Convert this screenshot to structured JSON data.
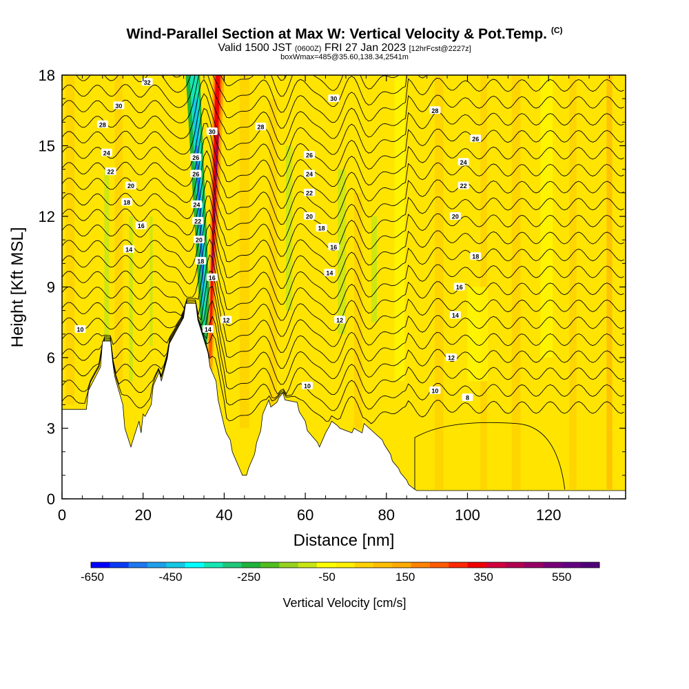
{
  "title": {
    "main": "Wind-Parallel Section at Max W: Vertical Velocity & Pot.Temp.",
    "copyright": "(C)",
    "valid_prefix": "Valid 1500 JST",
    "valid_zulu": "(0600Z)",
    "valid_date": "FRI 27 Jan 2023",
    "forecast_tag": "[12hrFcst@2227z]",
    "box_info": "boxWmax=485@35.60,138.34,2541m"
  },
  "colorbar": {
    "title": "Vertical Velocity [cm/s]",
    "tick_labels": [
      "-650",
      "-450",
      "-250",
      "-50",
      "150",
      "350",
      "550"
    ],
    "colors": [
      "#0000ff",
      "#0a3cf5",
      "#1e78f0",
      "#1ea0eb",
      "#14c8e6",
      "#00ffff",
      "#14e6b4",
      "#1ec878",
      "#1eb43c",
      "#50be1e",
      "#96d21e",
      "#c8e614",
      "#ffff00",
      "#fff000",
      "#ffd200",
      "#ffbe00",
      "#ffaa00",
      "#ff8200",
      "#ff5a00",
      "#ff2800",
      "#f00000",
      "#d2003c",
      "#b40050",
      "#960064",
      "#780078",
      "#640082",
      "#500078"
    ]
  },
  "chart_data": {
    "type": "heatmap",
    "title": "Wind-Parallel Section at Max W: Vertical Velocity & Pot.Temp.",
    "xlabel": "Distance [nm]",
    "ylabel": "Height [Kft MSL]",
    "xlim": [
      0,
      139
    ],
    "ylim": [
      0,
      18
    ],
    "x_ticks": [
      0,
      20,
      40,
      60,
      80,
      100,
      120
    ],
    "y_ticks": [
      0,
      3,
      6,
      9,
      12,
      15,
      18
    ],
    "shaded_field": "Vertical Velocity [cm/s]",
    "shaded_range": [
      -650,
      650
    ],
    "contour_field": "Potential temperature",
    "contour_levels": [
      8,
      10,
      12,
      14,
      16,
      18,
      20,
      22,
      24,
      26,
      28,
      30,
      32
    ],
    "terrain": {
      "x": [
        0,
        6,
        6.5,
        9.5,
        10,
        12,
        12.5,
        13,
        13.5,
        15,
        15.5,
        17,
        17.5,
        19,
        19.5,
        20,
        20.5,
        22,
        22.5,
        24,
        24.5,
        26,
        26.5,
        30,
        30.5,
        33,
        33.5,
        36,
        36.5,
        38,
        38.5,
        40,
        40.5,
        41.5,
        42,
        44,
        44.5,
        45.5,
        46,
        47.5,
        48,
        49,
        49.5,
        51,
        51.5,
        53,
        53.5,
        54.5,
        55,
        58,
        58.5,
        60,
        60.5,
        63,
        63.5,
        64.5,
        65,
        66,
        66.5,
        68,
        68.5,
        71.5,
        72,
        74,
        74.5,
        79,
        79.5,
        81,
        81.5,
        83,
        83.5,
        85,
        85.5,
        87,
        87.5,
        139
      ],
      "height": [
        3.8,
        3.8,
        4.6,
        5.6,
        6.7,
        6.7,
        5.8,
        5.2,
        4.9,
        4.0,
        3.0,
        2.2,
        2.5,
        3.3,
        2.8,
        3.6,
        3.5,
        4.0,
        4.8,
        5.4,
        5.0,
        6.0,
        6.6,
        7.7,
        8.3,
        8.3,
        7.6,
        6.2,
        5.6,
        5.0,
        4.2,
        3.1,
        2.8,
        2.5,
        2.0,
        1.2,
        1.0,
        1.0,
        1.3,
        1.9,
        2.4,
        2.9,
        3.6,
        4.2,
        3.9,
        4.1,
        4.3,
        4.5,
        4.2,
        4.1,
        3.7,
        3.3,
        2.9,
        2.4,
        2.2,
        2.6,
        2.8,
        3.1,
        3.3,
        3.1,
        3.0,
        2.8,
        3.0,
        2.8,
        3.2,
        2.5,
        2.3,
        1.9,
        1.6,
        1.3,
        1.1,
        0.8,
        0.6,
        0.4,
        0.35,
        0.35
      ]
    },
    "contour_labels": [
      {
        "value": 32,
        "x": 21,
        "y": 17.7
      },
      {
        "value": 30,
        "x": 14,
        "y": 16.7
      },
      {
        "value": 28,
        "x": 10,
        "y": 15.9
      },
      {
        "value": 24,
        "x": 11,
        "y": 14.7
      },
      {
        "value": 22,
        "x": 12,
        "y": 13.9
      },
      {
        "value": 20,
        "x": 17,
        "y": 13.3
      },
      {
        "value": 18,
        "x": 16,
        "y": 12.6
      },
      {
        "value": 16,
        "x": 19.5,
        "y": 11.6
      },
      {
        "value": 14,
        "x": 16.5,
        "y": 10.6
      },
      {
        "value": 10,
        "x": 4.5,
        "y": 7.2
      },
      {
        "value": 30,
        "x": 37,
        "y": 15.6
      },
      {
        "value": 26,
        "x": 33,
        "y": 14.5
      },
      {
        "value": 26,
        "x": 33,
        "y": 13.8
      },
      {
        "value": 24,
        "x": 33.2,
        "y": 12.5
      },
      {
        "value": 22,
        "x": 33.5,
        "y": 11.8
      },
      {
        "value": 20,
        "x": 33.8,
        "y": 11.0
      },
      {
        "value": 18,
        "x": 34.2,
        "y": 10.1
      },
      {
        "value": 16,
        "x": 37,
        "y": 9.4
      },
      {
        "value": 14,
        "x": 36,
        "y": 7.2
      },
      {
        "value": 12,
        "x": 40.5,
        "y": 7.6
      },
      {
        "value": 28,
        "x": 49,
        "y": 15.8
      },
      {
        "value": 30,
        "x": 67,
        "y": 17.0
      },
      {
        "value": 26,
        "x": 61,
        "y": 14.6
      },
      {
        "value": 24,
        "x": 61,
        "y": 13.8
      },
      {
        "value": 22,
        "x": 61,
        "y": 13.0
      },
      {
        "value": 20,
        "x": 61,
        "y": 12.0
      },
      {
        "value": 18,
        "x": 64,
        "y": 11.5
      },
      {
        "value": 16,
        "x": 67,
        "y": 10.7
      },
      {
        "value": 14,
        "x": 66,
        "y": 9.6
      },
      {
        "value": 12,
        "x": 68.5,
        "y": 7.6
      },
      {
        "value": 10,
        "x": 60.5,
        "y": 4.8
      },
      {
        "value": 28,
        "x": 92,
        "y": 16.5
      },
      {
        "value": 26,
        "x": 102,
        "y": 15.3
      },
      {
        "value": 24,
        "x": 99,
        "y": 14.3
      },
      {
        "value": 22,
        "x": 99,
        "y": 13.3
      },
      {
        "value": 20,
        "x": 97,
        "y": 12.0
      },
      {
        "value": 18,
        "x": 102,
        "y": 10.3
      },
      {
        "value": 16,
        "x": 98,
        "y": 9.0
      },
      {
        "value": 14,
        "x": 97,
        "y": 7.8
      },
      {
        "value": 12,
        "x": 96,
        "y": 6.0
      },
      {
        "value": 10,
        "x": 92,
        "y": 4.6
      },
      {
        "value": 8,
        "x": 100,
        "y": 4.3
      }
    ]
  }
}
